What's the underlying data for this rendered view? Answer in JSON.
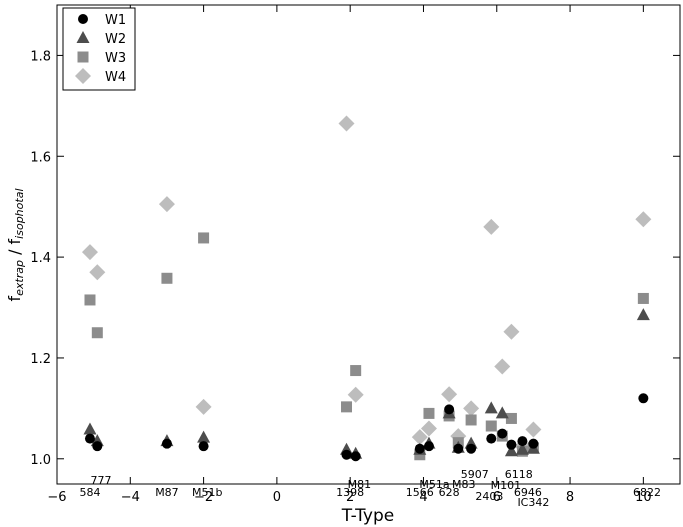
{
  "chart_data": {
    "type": "scatter",
    "title": "",
    "xlabel": "T-Type",
    "ylabel": "f_extrap / f_isophotal",
    "ylabel_parts": {
      "f1": "f",
      "sub1": "extrap",
      "sep": " / ",
      "f2": "f",
      "sub2": "isophotal"
    },
    "xlim": [
      -6,
      11
    ],
    "ylim": [
      0.95,
      1.9
    ],
    "xticks": [
      -6,
      -4,
      -2,
      0,
      2,
      4,
      6,
      8,
      10
    ],
    "xtick_labels": [
      "−6",
      "−4",
      "−2",
      "0",
      "2",
      "4",
      "6",
      "8",
      "10"
    ],
    "yticks": [
      1.0,
      1.2,
      1.4,
      1.6,
      1.8
    ],
    "ytick_labels": [
      "1.0",
      "1.2",
      "1.4",
      "1.6",
      "1.8"
    ],
    "grid": false,
    "legend_position": "top-left",
    "series": [
      {
        "name": "W1",
        "marker": "circle",
        "color": "#000000",
        "points": [
          {
            "x": -5.1,
            "y": 1.04
          },
          {
            "x": -4.9,
            "y": 1.025
          },
          {
            "x": -3.0,
            "y": 1.03
          },
          {
            "x": -2.0,
            "y": 1.025
          },
          {
            "x": 1.9,
            "y": 1.008
          },
          {
            "x": 2.15,
            "y": 1.005
          },
          {
            "x": 3.9,
            "y": 1.02
          },
          {
            "x": 4.15,
            "y": 1.025
          },
          {
            "x": 4.7,
            "y": 1.098
          },
          {
            "x": 4.95,
            "y": 1.02
          },
          {
            "x": 5.3,
            "y": 1.02
          },
          {
            "x": 5.85,
            "y": 1.04
          },
          {
            "x": 6.15,
            "y": 1.05
          },
          {
            "x": 6.4,
            "y": 1.028
          },
          {
            "x": 6.7,
            "y": 1.035
          },
          {
            "x": 7.0,
            "y": 1.03
          },
          {
            "x": 10.0,
            "y": 1.12
          }
        ]
      },
      {
        "name": "W2",
        "marker": "triangle",
        "color": "#4d4d4d",
        "points": [
          {
            "x": -5.1,
            "y": 1.058
          },
          {
            "x": -4.9,
            "y": 1.035
          },
          {
            "x": -3.0,
            "y": 1.035
          },
          {
            "x": -2.0,
            "y": 1.042
          },
          {
            "x": 1.9,
            "y": 1.018
          },
          {
            "x": 2.15,
            "y": 1.01
          },
          {
            "x": 3.9,
            "y": 1.018
          },
          {
            "x": 4.15,
            "y": 1.03
          },
          {
            "x": 4.7,
            "y": 1.09
          },
          {
            "x": 4.95,
            "y": 1.022
          },
          {
            "x": 5.3,
            "y": 1.03
          },
          {
            "x": 5.85,
            "y": 1.1
          },
          {
            "x": 6.15,
            "y": 1.09
          },
          {
            "x": 6.4,
            "y": 1.015
          },
          {
            "x": 6.7,
            "y": 1.018
          },
          {
            "x": 7.0,
            "y": 1.02
          },
          {
            "x": 10.0,
            "y": 1.285
          }
        ]
      },
      {
        "name": "W3",
        "marker": "square",
        "color": "#8c8c8c",
        "points": [
          {
            "x": -5.1,
            "y": 1.315
          },
          {
            "x": -4.9,
            "y": 1.25
          },
          {
            "x": -3.0,
            "y": 1.358
          },
          {
            "x": -2.0,
            "y": 1.438
          },
          {
            "x": 1.9,
            "y": 1.103
          },
          {
            "x": 2.15,
            "y": 1.175
          },
          {
            "x": 3.9,
            "y": 1.008
          },
          {
            "x": 4.15,
            "y": 1.09
          },
          {
            "x": 4.7,
            "y": 1.085
          },
          {
            "x": 4.95,
            "y": 1.032
          },
          {
            "x": 5.3,
            "y": 1.077
          },
          {
            "x": 5.85,
            "y": 1.065
          },
          {
            "x": 6.15,
            "y": 1.045
          },
          {
            "x": 6.4,
            "y": 1.08
          },
          {
            "x": 6.7,
            "y": 1.015
          },
          {
            "x": 7.0,
            "y": 1.022
          },
          {
            "x": 10.0,
            "y": 1.318
          }
        ]
      },
      {
        "name": "W4",
        "marker": "diamond",
        "color": "#bdbdbd",
        "points": [
          {
            "x": -5.1,
            "y": 1.41
          },
          {
            "x": -4.9,
            "y": 1.37
          },
          {
            "x": -3.0,
            "y": 1.505
          },
          {
            "x": -2.0,
            "y": 1.103
          },
          {
            "x": 1.9,
            "y": 1.665
          },
          {
            "x": 2.15,
            "y": 1.127
          },
          {
            "x": 3.9,
            "y": 1.043
          },
          {
            "x": 4.15,
            "y": 1.06
          },
          {
            "x": 4.7,
            "y": 1.128
          },
          {
            "x": 4.95,
            "y": 1.045
          },
          {
            "x": 5.3,
            "y": 1.1
          },
          {
            "x": 5.85,
            "y": 1.46
          },
          {
            "x": 6.15,
            "y": 1.183
          },
          {
            "x": 6.4,
            "y": 1.252
          },
          {
            "x": 6.7,
            "y": 1.025
          },
          {
            "x": 7.0,
            "y": 1.058
          },
          {
            "x": 10.0,
            "y": 1.475
          }
        ]
      }
    ],
    "annotations": [
      {
        "text": "777",
        "x": -4.8,
        "y": 0.958
      },
      {
        "text": "584",
        "x": -5.1,
        "y": 0.934
      },
      {
        "text": "M87",
        "x": -3.0,
        "y": 0.934
      },
      {
        "text": "M51b",
        "x": -1.9,
        "y": 0.934
      },
      {
        "text": "M81",
        "x": 2.25,
        "y": 0.95
      },
      {
        "text": "1398",
        "x": 2.0,
        "y": 0.934
      },
      {
        "text": "M51a",
        "x": 4.3,
        "y": 0.95
      },
      {
        "text": "M83",
        "x": 5.1,
        "y": 0.95
      },
      {
        "text": "5907",
        "x": 5.4,
        "y": 0.97
      },
      {
        "text": "1566",
        "x": 3.9,
        "y": 0.934
      },
      {
        "text": "628",
        "x": 4.7,
        "y": 0.934
      },
      {
        "text": "6118",
        "x": 6.6,
        "y": 0.97
      },
      {
        "text": "M101",
        "x": 6.25,
        "y": 0.948
      },
      {
        "text": "2403",
        "x": 5.8,
        "y": 0.926
      },
      {
        "text": "6946",
        "x": 6.85,
        "y": 0.934
      },
      {
        "text": "IC342",
        "x": 7.0,
        "y": 0.914
      },
      {
        "text": "6822",
        "x": 10.1,
        "y": 0.934
      }
    ]
  }
}
